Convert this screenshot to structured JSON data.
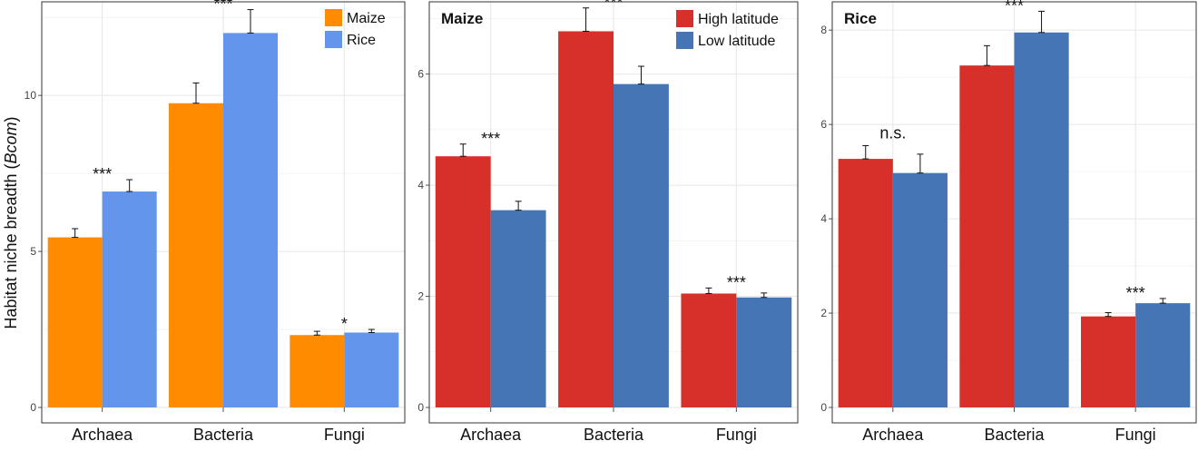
{
  "chart_data": [
    {
      "type": "bar",
      "title": "",
      "ylabel": "Habitat niche breadth (",
      "ylabel_italic": "Bcom",
      "ylabel_close": ")",
      "xlabel": "",
      "categories": [
        "Archaea",
        "Bacteria",
        "Fungi"
      ],
      "ylim": [
        0,
        13.0
      ],
      "yticks": [
        0,
        5,
        10
      ],
      "series": [
        {
          "name": "Maize",
          "color": "#FF8C00",
          "values": [
            5.45,
            9.75,
            2.32
          ],
          "errors": [
            0.28,
            0.65,
            0.12
          ]
        },
        {
          "name": "Rice",
          "color": "#6495ED",
          "values": [
            6.92,
            12.0,
            2.4
          ],
          "errors": [
            0.38,
            0.75,
            0.1
          ]
        }
      ],
      "significance": [
        "***",
        "***",
        "*"
      ],
      "legend_position": "top-right",
      "grid": true
    },
    {
      "type": "bar",
      "title": "Maize",
      "ylabel": "",
      "xlabel": "",
      "categories": [
        "Archaea",
        "Bacteria",
        "Fungi"
      ],
      "ylim": [
        0,
        7.3
      ],
      "yticks": [
        0,
        2,
        4,
        6
      ],
      "series": [
        {
          "name": "High latitude",
          "color": "#D7302A",
          "values": [
            4.52,
            6.77,
            2.05
          ],
          "errors": [
            0.22,
            0.42,
            0.1
          ]
        },
        {
          "name": "Low latitude",
          "color": "#4575B4",
          "values": [
            3.55,
            5.82,
            1.98
          ],
          "errors": [
            0.16,
            0.32,
            0.08
          ]
        }
      ],
      "significance": [
        "***",
        "***",
        "***"
      ],
      "legend_position": "top-right",
      "grid": true
    },
    {
      "type": "bar",
      "title": "Rice",
      "ylabel": "",
      "xlabel": "",
      "categories": [
        "Archaea",
        "Bacteria",
        "Fungi"
      ],
      "ylim": [
        0,
        8.6
      ],
      "yticks": [
        0,
        2,
        4,
        6,
        8
      ],
      "series": [
        {
          "name": "High latitude",
          "color": "#D7302A",
          "values": [
            5.27,
            7.25,
            1.93
          ],
          "errors": [
            0.28,
            0.42,
            0.08
          ]
        },
        {
          "name": "Low latitude",
          "color": "#4575B4",
          "values": [
            4.97,
            7.95,
            2.21
          ],
          "errors": [
            0.4,
            0.45,
            0.1
          ]
        }
      ],
      "significance": [
        "n.s.",
        "***",
        "***"
      ],
      "legend_position": "none",
      "grid": true
    }
  ]
}
